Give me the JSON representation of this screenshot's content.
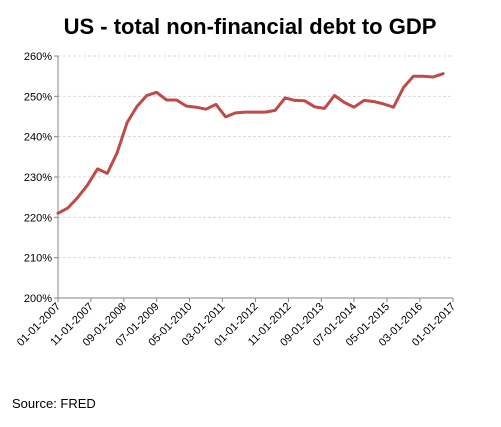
{
  "chart_data": {
    "type": "line",
    "title": "US - total non-financial debt to GDP",
    "xlabel": "",
    "ylabel": "",
    "y_tick_labels": [
      "200%",
      "210%",
      "220%",
      "230%",
      "240%",
      "250%",
      "260%"
    ],
    "y_ticks": [
      200,
      210,
      220,
      230,
      240,
      250,
      260
    ],
    "ylim": [
      200,
      260
    ],
    "x_tick_labels": [
      "01-01-2007",
      "11-01-2007",
      "09-01-2008",
      "07-01-2009",
      "05-01-2010",
      "03-01-2011",
      "01-01-2012",
      "11-01-2012",
      "09-01-2013",
      "07-01-2014",
      "05-01-2015",
      "03-01-2016",
      "01-01-2017"
    ],
    "x": [
      "2007-01-01",
      "2007-04-01",
      "2007-07-01",
      "2007-10-01",
      "2008-01-01",
      "2008-04-01",
      "2008-07-01",
      "2008-10-01",
      "2009-01-01",
      "2009-04-01",
      "2009-07-01",
      "2009-10-01",
      "2010-01-01",
      "2010-04-01",
      "2010-07-01",
      "2010-10-01",
      "2011-01-01",
      "2011-04-01",
      "2011-07-01",
      "2011-10-01",
      "2012-01-01",
      "2012-04-01",
      "2012-07-01",
      "2012-10-01",
      "2013-01-01",
      "2013-04-01",
      "2013-07-01",
      "2013-10-01",
      "2014-01-01",
      "2014-04-01",
      "2014-07-01",
      "2014-10-01",
      "2015-01-01",
      "2015-04-01",
      "2015-07-01",
      "2015-10-01",
      "2016-01-01",
      "2016-04-01",
      "2016-07-01",
      "2016-10-01"
    ],
    "series": [
      {
        "values": [
          221.0,
          222.3,
          224.9,
          228.0,
          232.0,
          230.9,
          236.0,
          243.5,
          247.5,
          250.2,
          251.0,
          249.1,
          249.1,
          247.6,
          247.3,
          246.8,
          248.0,
          244.9,
          245.9,
          246.1,
          246.1,
          246.1,
          246.5,
          249.6,
          249.0,
          248.9,
          247.4,
          247.0,
          250.2,
          248.5,
          247.3,
          249.0,
          248.7,
          248.1,
          247.3,
          252.2,
          255.0,
          255.0,
          254.8,
          255.6
        ],
        "color": "#be4b48"
      }
    ],
    "grid": true,
    "legend": "none"
  },
  "source_note": "Source: FRED"
}
